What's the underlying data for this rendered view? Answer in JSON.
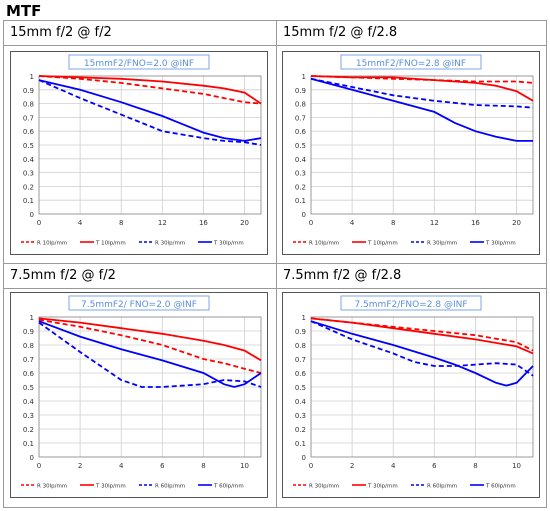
{
  "page": {
    "title": "MTF"
  },
  "chart_data": [
    {
      "type": "line",
      "panel_title": "15mm f/2 @ f/2",
      "title": "15mmF2/FNO=2.0  @INF",
      "xlim": [
        0,
        21.6
      ],
      "ylim": [
        0,
        1
      ],
      "xticks": [
        0,
        4,
        8,
        12,
        16,
        20
      ],
      "yticks": [
        0,
        0.1,
        0.2,
        0.3,
        0.4,
        0.5,
        0.6,
        0.7,
        0.8,
        0.9,
        1
      ],
      "grid": true,
      "legend_placement": "bottom",
      "series": [
        {
          "name": "R 10lp/mm",
          "color": "#ff0000",
          "dash": true,
          "x": [
            0,
            4,
            8,
            12,
            16,
            18,
            20,
            21.6
          ],
          "y": [
            1.0,
            0.98,
            0.95,
            0.91,
            0.87,
            0.84,
            0.81,
            0.8
          ]
        },
        {
          "name": "T 10lp/mm",
          "color": "#ff0000",
          "dash": false,
          "x": [
            0,
            4,
            8,
            12,
            16,
            18,
            20,
            21.6
          ],
          "y": [
            1.0,
            0.99,
            0.98,
            0.96,
            0.93,
            0.91,
            0.88,
            0.8
          ]
        },
        {
          "name": "R 30lp/mm",
          "color": "#0000ff",
          "dash": true,
          "x": [
            0,
            4,
            8,
            10,
            12,
            16,
            18,
            20,
            21.6
          ],
          "y": [
            0.97,
            0.84,
            0.72,
            0.66,
            0.6,
            0.55,
            0.53,
            0.52,
            0.5
          ]
        },
        {
          "name": "T 30lp/mm",
          "color": "#0000ff",
          "dash": false,
          "x": [
            0,
            4,
            8,
            12,
            14,
            16,
            18,
            20,
            21.6
          ],
          "y": [
            0.97,
            0.9,
            0.81,
            0.71,
            0.65,
            0.59,
            0.55,
            0.53,
            0.55
          ]
        }
      ]
    },
    {
      "type": "line",
      "panel_title": "15mm f/2 @ f/2.8",
      "title": "15mmF2/FNO=2.8  @INF",
      "xlim": [
        0,
        21.6
      ],
      "ylim": [
        0,
        1
      ],
      "xticks": [
        0,
        4,
        8,
        12,
        16,
        20
      ],
      "yticks": [
        0,
        0.1,
        0.2,
        0.3,
        0.4,
        0.5,
        0.6,
        0.7,
        0.8,
        0.9,
        1
      ],
      "grid": true,
      "legend_placement": "bottom",
      "series": [
        {
          "name": "R 10lp/mm",
          "color": "#ff0000",
          "dash": true,
          "x": [
            0,
            4,
            8,
            12,
            16,
            20,
            21.6
          ],
          "y": [
            1.0,
            0.99,
            0.98,
            0.97,
            0.96,
            0.96,
            0.95
          ]
        },
        {
          "name": "T 10lp/mm",
          "color": "#ff0000",
          "dash": false,
          "x": [
            0,
            4,
            8,
            12,
            16,
            18,
            20,
            21.6
          ],
          "y": [
            1.0,
            0.99,
            0.99,
            0.97,
            0.95,
            0.93,
            0.89,
            0.82
          ]
        },
        {
          "name": "R 30lp/mm",
          "color": "#0000ff",
          "dash": true,
          "x": [
            0,
            4,
            8,
            12,
            16,
            20,
            21.6
          ],
          "y": [
            0.98,
            0.92,
            0.86,
            0.82,
            0.79,
            0.78,
            0.77
          ]
        },
        {
          "name": "T 30lp/mm",
          "color": "#0000ff",
          "dash": false,
          "x": [
            0,
            4,
            8,
            12,
            14,
            16,
            18,
            20,
            21.6
          ],
          "y": [
            0.98,
            0.9,
            0.82,
            0.74,
            0.66,
            0.6,
            0.56,
            0.53,
            0.53
          ]
        }
      ]
    },
    {
      "type": "line",
      "panel_title": "7.5mm f/2 @ f/2",
      "title": "7.5mmF2/ FNO=2.0  @INF",
      "xlim": [
        0,
        10.8
      ],
      "ylim": [
        0,
        1
      ],
      "xticks": [
        0,
        2,
        4,
        6,
        8,
        10
      ],
      "yticks": [
        0,
        0.1,
        0.2,
        0.3,
        0.4,
        0.5,
        0.6,
        0.7,
        0.8,
        0.9,
        1
      ],
      "grid": true,
      "legend_placement": "bottom",
      "series": [
        {
          "name": "R 30lp/mm",
          "color": "#ff0000",
          "dash": true,
          "x": [
            0,
            2,
            4,
            6,
            7,
            8,
            9,
            10,
            10.8
          ],
          "y": [
            0.98,
            0.93,
            0.87,
            0.8,
            0.75,
            0.7,
            0.67,
            0.63,
            0.6
          ]
        },
        {
          "name": "T 30lp/mm",
          "color": "#ff0000",
          "dash": false,
          "x": [
            0,
            2,
            4,
            6,
            8,
            9,
            10,
            10.8
          ],
          "y": [
            0.99,
            0.96,
            0.92,
            0.88,
            0.83,
            0.8,
            0.76,
            0.69
          ]
        },
        {
          "name": "R 60lp/mm",
          "color": "#0000ff",
          "dash": true,
          "x": [
            0,
            2,
            4,
            5,
            6,
            8,
            9,
            10,
            10.8
          ],
          "y": [
            0.96,
            0.75,
            0.55,
            0.5,
            0.5,
            0.52,
            0.55,
            0.54,
            0.5
          ]
        },
        {
          "name": "T 60lp/mm",
          "color": "#0000ff",
          "dash": false,
          "x": [
            0,
            2,
            4,
            6,
            8,
            9,
            9.5,
            10,
            10.8
          ],
          "y": [
            0.97,
            0.86,
            0.77,
            0.69,
            0.6,
            0.52,
            0.5,
            0.52,
            0.6
          ]
        }
      ]
    },
    {
      "type": "line",
      "panel_title": "7.5mm f/2 @ f/2.8",
      "title": "7.5mmF2/FNO=2.8  @INF",
      "xlim": [
        0,
        10.8
      ],
      "ylim": [
        0,
        1
      ],
      "xticks": [
        0,
        2,
        4,
        6,
        8,
        10
      ],
      "yticks": [
        0,
        0.1,
        0.2,
        0.3,
        0.4,
        0.5,
        0.6,
        0.7,
        0.8,
        0.9,
        1
      ],
      "grid": true,
      "legend_placement": "bottom",
      "series": [
        {
          "name": "R 30lp/mm",
          "color": "#ff0000",
          "dash": true,
          "x": [
            0,
            2,
            4,
            6,
            8,
            10,
            10.8
          ],
          "y": [
            0.99,
            0.96,
            0.93,
            0.9,
            0.87,
            0.82,
            0.76
          ]
        },
        {
          "name": "T 30lp/mm",
          "color": "#ff0000",
          "dash": false,
          "x": [
            0,
            2,
            4,
            6,
            8,
            10,
            10.8
          ],
          "y": [
            0.99,
            0.96,
            0.92,
            0.88,
            0.84,
            0.79,
            0.74
          ]
        },
        {
          "name": "R 60lp/mm",
          "color": "#0000ff",
          "dash": true,
          "x": [
            0,
            2,
            4,
            5,
            6,
            7,
            8,
            9,
            10,
            10.8
          ],
          "y": [
            0.97,
            0.84,
            0.74,
            0.68,
            0.65,
            0.65,
            0.66,
            0.67,
            0.66,
            0.58
          ]
        },
        {
          "name": "T 60lp/mm",
          "color": "#0000ff",
          "dash": false,
          "x": [
            0,
            2,
            4,
            6,
            7,
            8,
            9,
            9.5,
            10,
            10.8
          ],
          "y": [
            0.97,
            0.88,
            0.8,
            0.71,
            0.66,
            0.6,
            0.53,
            0.51,
            0.53,
            0.65
          ]
        }
      ]
    }
  ]
}
